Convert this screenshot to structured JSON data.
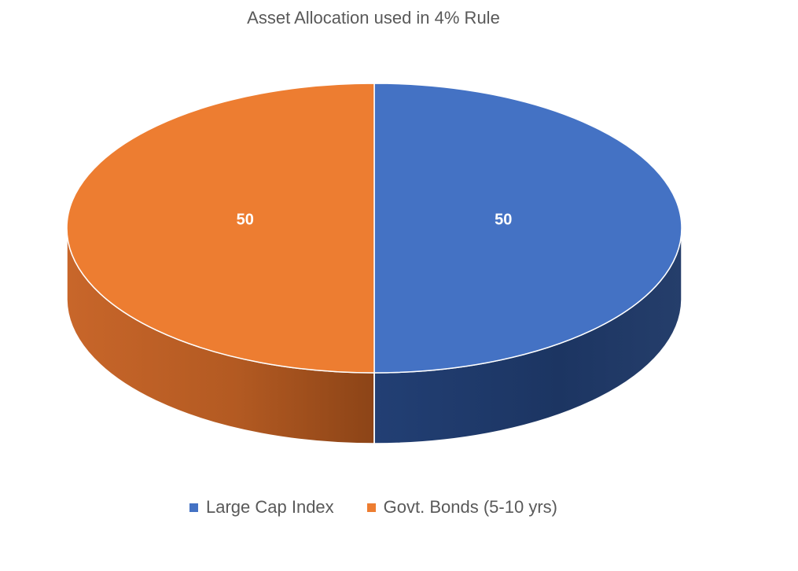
{
  "chart_data": {
    "type": "pie",
    "title": "Asset Allocation used in 4% Rule",
    "style": "3d",
    "slices": [
      {
        "label": "Large Cap Index",
        "value": 50,
        "color": "#4472C4"
      },
      {
        "label": "Govt. Bonds (5-10 yrs)",
        "value": 50,
        "color": "#ED7D31"
      }
    ],
    "data_labels": [
      "50",
      "50"
    ],
    "legend_position": "bottom"
  }
}
